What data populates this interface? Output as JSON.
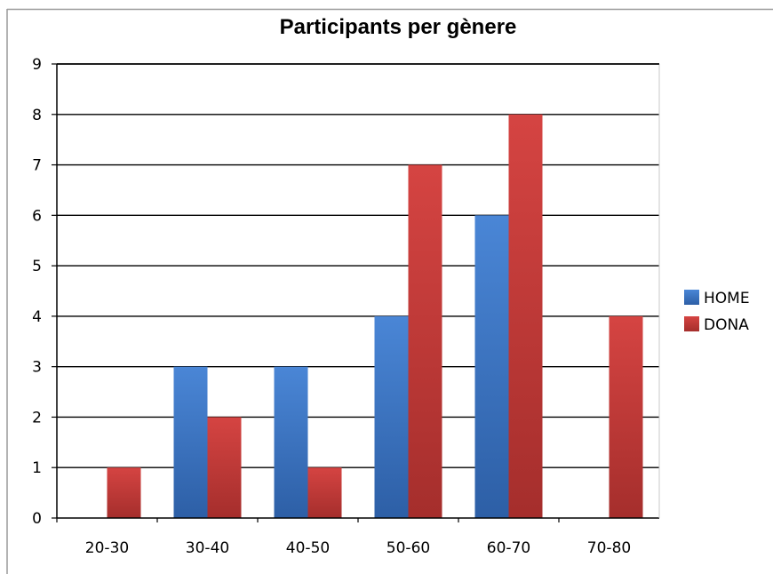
{
  "chart_data": {
    "type": "bar",
    "title": "Participants per gènere",
    "xlabel": "",
    "ylabel": "",
    "categories": [
      "20-30",
      "30-40",
      "40-50",
      "50-60",
      "60-70",
      "70-80"
    ],
    "series": [
      {
        "name": "HOME",
        "values": [
          0,
          3,
          3,
          4,
          6,
          0
        ],
        "color": "#3b73c4"
      },
      {
        "name": "DONA",
        "values": [
          1,
          2,
          1,
          7,
          8,
          4
        ],
        "color": "#c83a38"
      }
    ],
    "ylim": [
      0,
      9
    ],
    "yticks": [
      "0",
      "1",
      "2",
      "3",
      "4",
      "5",
      "6",
      "7",
      "8",
      "9"
    ],
    "grid": true,
    "legend_position": "right"
  }
}
